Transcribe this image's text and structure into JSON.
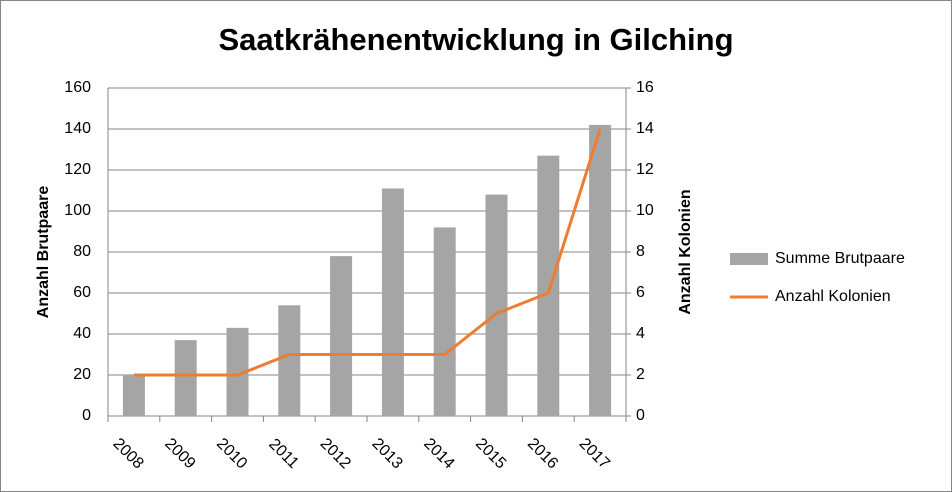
{
  "chart_data": {
    "type": "bar",
    "title": "Saatkrähenentwicklung in Gilching",
    "categories": [
      "2008",
      "2009",
      "2010",
      "2011",
      "2012",
      "2013",
      "2014",
      "2015",
      "2016",
      "2017"
    ],
    "series": [
      {
        "name": "Summe Brutpaare",
        "color": "#a5a5a5",
        "values": [
          20,
          37,
          43,
          54,
          78,
          111,
          92,
          108,
          127,
          142
        ]
      },
      {
        "name": "Anzahl Kolonien",
        "color": "#ed7d31",
        "type": "line",
        "axis": "y2",
        "values": [
          2,
          2,
          2,
          3,
          3,
          3,
          3,
          5,
          6,
          14
        ]
      }
    ],
    "ylabel": "Anzahl Brutpaare",
    "y2label": "Anzahl Kolonien",
    "ylim": [
      0,
      160
    ],
    "yticks": [
      0,
      20,
      40,
      60,
      80,
      100,
      120,
      140,
      160
    ],
    "y2lim": [
      0,
      16
    ],
    "y2ticks": [
      0,
      2,
      4,
      6,
      8,
      10,
      12,
      14,
      16
    ],
    "grid": true,
    "legend": "right"
  }
}
